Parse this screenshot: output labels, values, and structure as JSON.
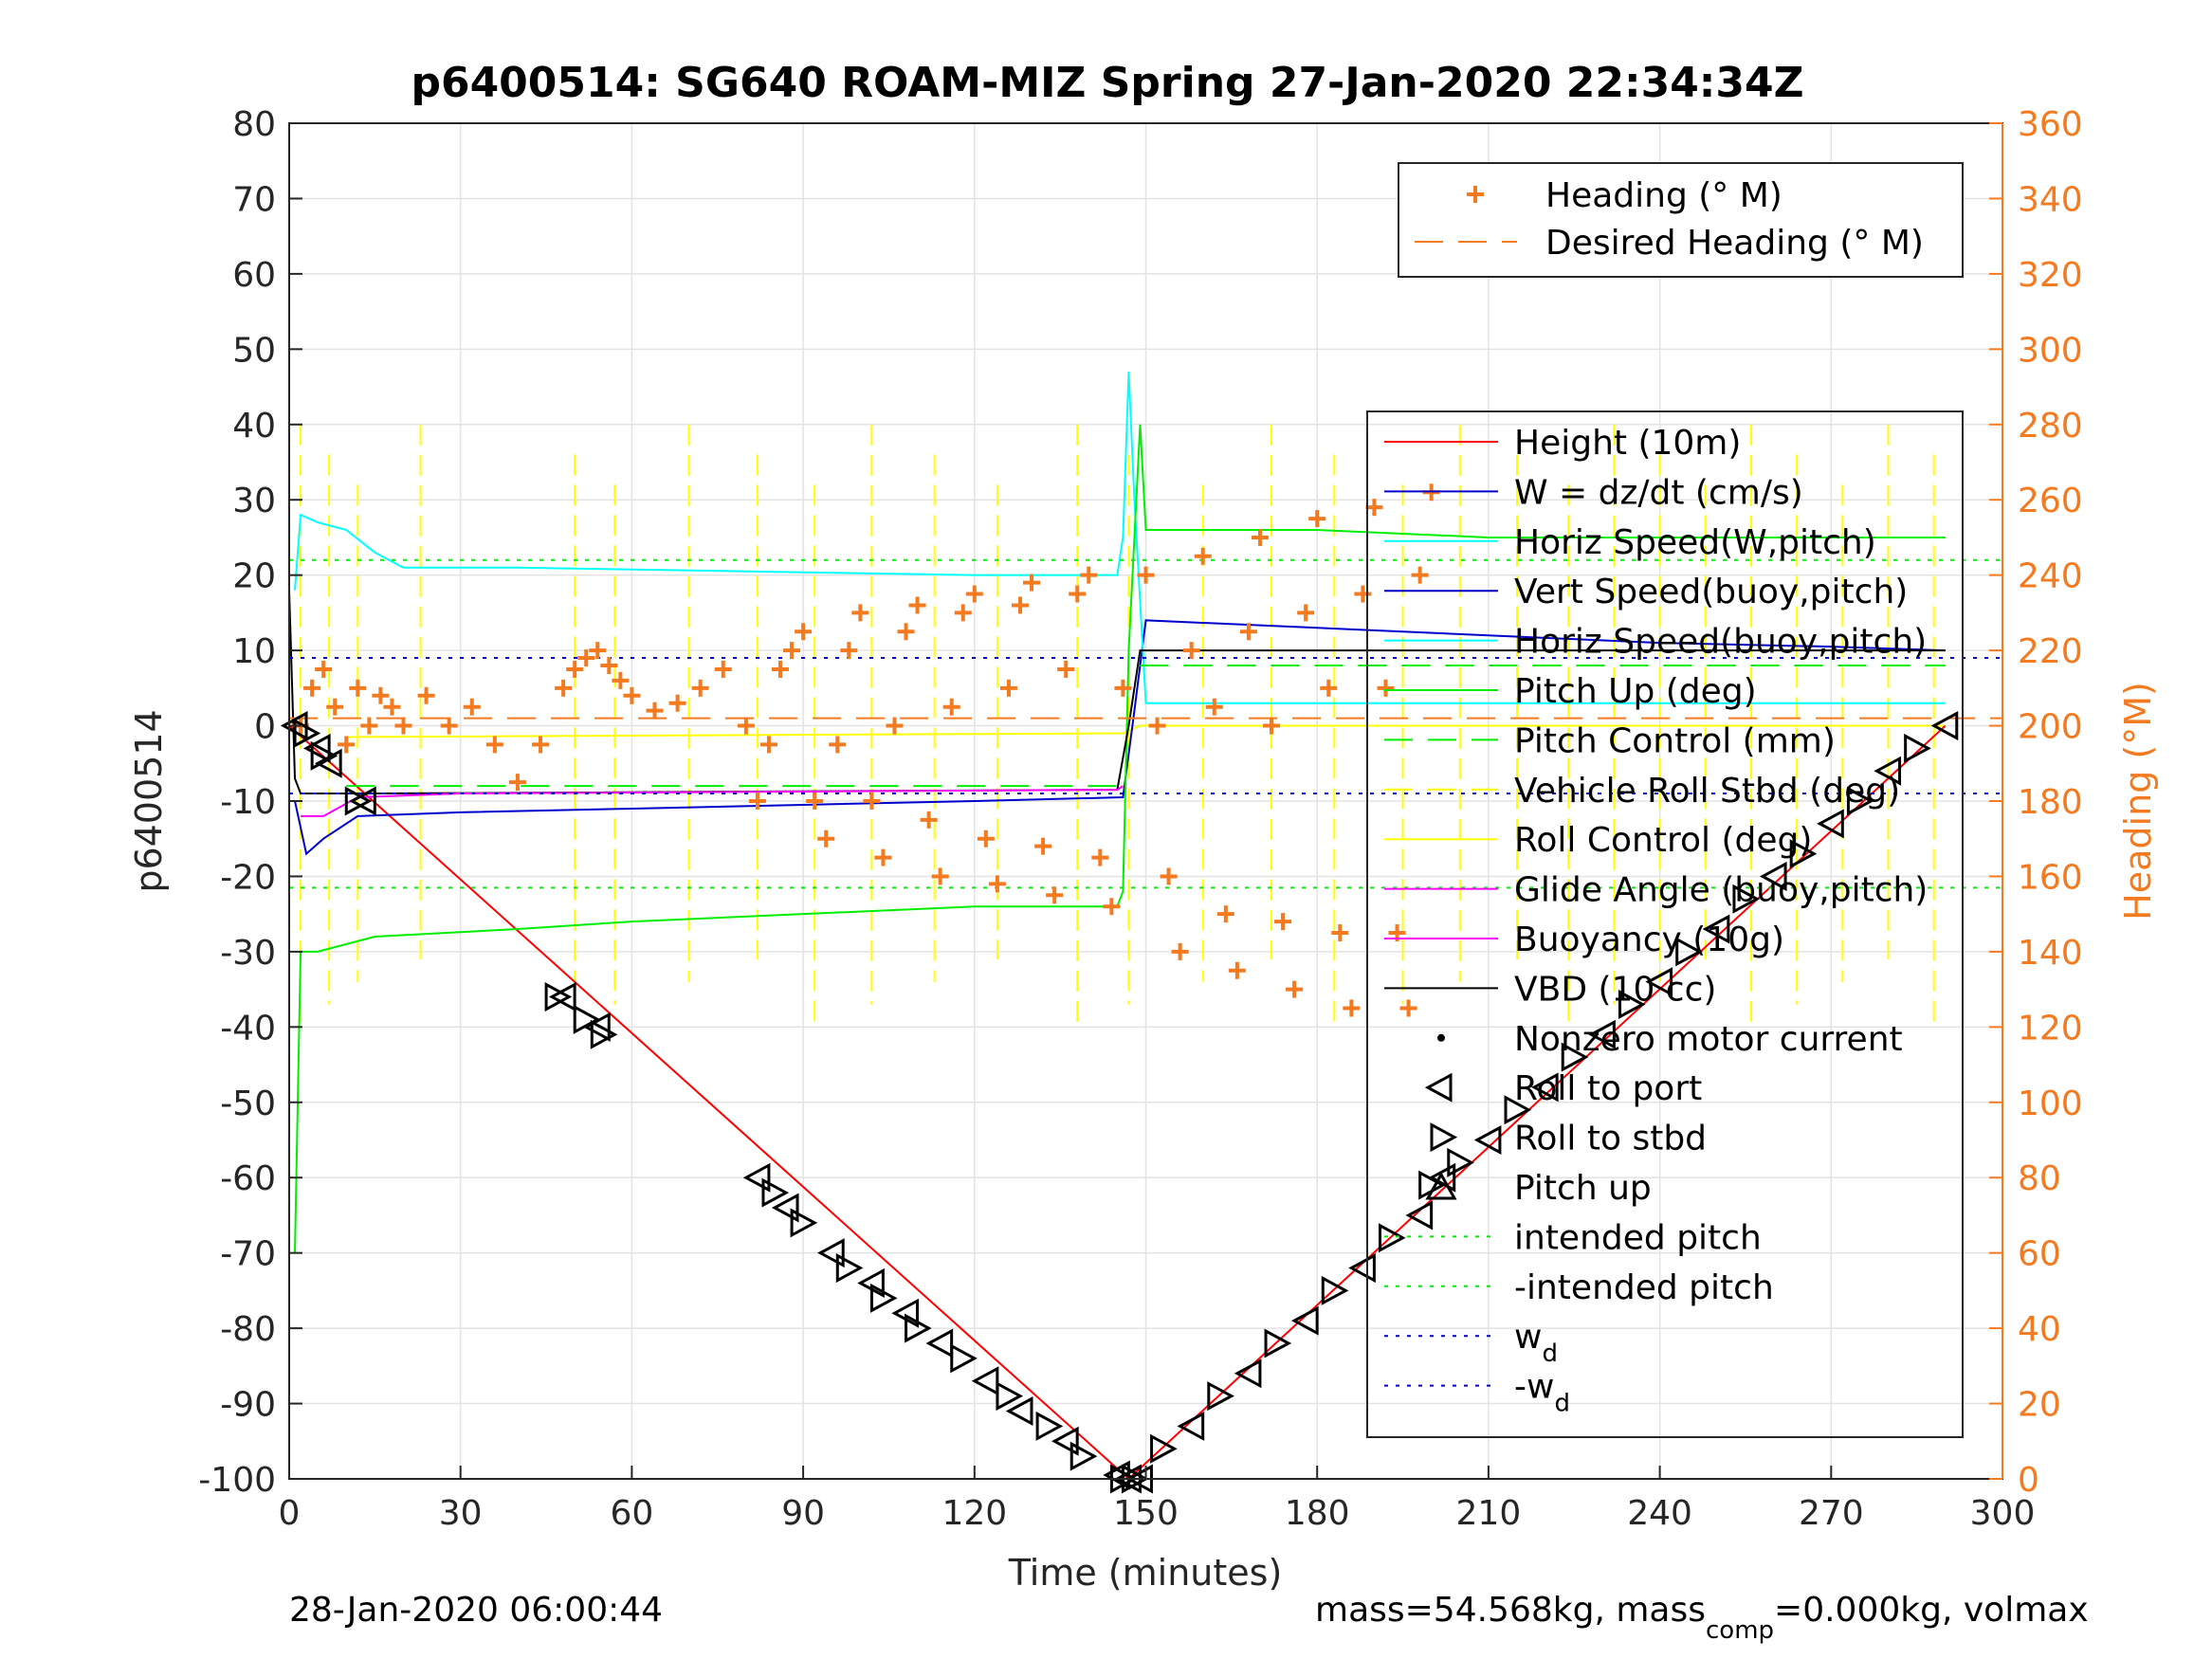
{
  "chart_data": {
    "type": "line",
    "title": "p6400514: SG640 ROAM-MIZ Spring 27-Jan-2020 22:34:34Z",
    "xlabel": "Time (minutes)",
    "ylabel_left": "p6400514",
    "ylabel_right": "Heading (°M)",
    "xlim": [
      0,
      300
    ],
    "ylim_left": [
      -100,
      80
    ],
    "ylim_right": [
      0,
      360
    ],
    "xticks": [
      "0",
      "30",
      "60",
      "90",
      "120",
      "150",
      "180",
      "210",
      "240",
      "270",
      "300"
    ],
    "yticks_left": [
      "-100",
      "-90",
      "-80",
      "-70",
      "-60",
      "-50",
      "-40",
      "-30",
      "-20",
      "-10",
      "0",
      "10",
      "20",
      "30",
      "40",
      "50",
      "60",
      "70",
      "80"
    ],
    "yticks_right": [
      "0",
      "20",
      "40",
      "60",
      "80",
      "100",
      "120",
      "140",
      "160",
      "180",
      "200",
      "220",
      "240",
      "260",
      "280",
      "300",
      "320",
      "340",
      "360"
    ],
    "grid": true,
    "colors": {
      "height": "#ff0000",
      "w": "#0000cc",
      "horiz_speed": "#00ffff",
      "pitch": "#00ee00",
      "roll": "#ffff00",
      "buoyancy": "#ff00ff",
      "vbd": "#000000",
      "heading": "#f47a20",
      "right_axis": "#f47a20"
    },
    "legend_heading": {
      "placement": "top-right",
      "entries": [
        "Heading (° M)",
        "Desired Heading (° M)"
      ]
    },
    "legend_main": {
      "placement": "right",
      "entries": [
        "Height (10m)",
        "W = dz/dt (cm/s)",
        "Horiz Speed(W,pitch)",
        "Vert Speed(buoy,pitch)",
        "Horiz Speed(buoy,pitch)",
        "Pitch Up (deg)",
        "Pitch Control (mm)",
        "Vehicle Roll Stbd (deg)",
        "Roll Control (deg)",
        "Glide Angle (buoy,pitch)",
        "Buoyancy (10g)",
        "VBD (10 cc)",
        "Nonzero motor current",
        "Roll to port",
        "Roll to stbd",
        "Pitch up",
        "intended pitch",
        "-intended pitch",
        "w",
        "-w"
      ],
      "subscript_entries": {
        "18": "d",
        "19": "d"
      }
    },
    "series": [
      {
        "name": "Height (10m)",
        "x": [
          0,
          147,
          290
        ],
        "y": [
          0,
          -100,
          0
        ]
      },
      {
        "name": "W = dz/dt (cm/s)",
        "x": [
          1,
          3,
          6,
          12,
          30,
          60,
          90,
          120,
          146,
          148,
          150,
          180,
          210,
          240,
          270,
          290
        ],
        "y": [
          -10,
          -17,
          -15,
          -12,
          -11.5,
          -11,
          -10.5,
          -10,
          -9.5,
          2,
          14,
          13,
          12,
          11,
          10.5,
          10
        ]
      },
      {
        "name": "Horiz Speed(W,pitch)",
        "x": [
          1,
          2,
          5,
          10,
          15,
          20,
          40,
          80,
          120,
          140,
          145,
          146,
          147,
          148,
          150,
          290
        ],
        "y": [
          18,
          28,
          27,
          26,
          23,
          21,
          21,
          20.5,
          20,
          20,
          20,
          25,
          47,
          30,
          3,
          3
        ]
      },
      {
        "name": "Pitch Up (deg)",
        "x": [
          1,
          2,
          5,
          15,
          40,
          60,
          90,
          120,
          145,
          146,
          147,
          149,
          150,
          180,
          210,
          240,
          290
        ],
        "y": [
          -70,
          -30,
          -30,
          -28,
          -27,
          -26,
          -25,
          -24,
          -24,
          -22,
          10,
          40,
          26,
          26,
          25,
          25,
          25
        ]
      },
      {
        "name": "VBD (10 cc)",
        "x": [
          0,
          1,
          2,
          14,
          145,
          147,
          149,
          290
        ],
        "y": [
          18,
          -7,
          -9,
          -9,
          -8.5,
          0,
          10,
          10
        ]
      },
      {
        "name": "Buoyancy (10g)",
        "x": [
          2,
          6,
          12,
          30,
          145,
          146
        ],
        "y": [
          -12,
          -12,
          -9.5,
          -9,
          -8.5,
          -8
        ]
      },
      {
        "name": "intended pitch",
        "y": [
          22
        ]
      },
      {
        "name": "-intended pitch",
        "y": [
          -21.5
        ]
      },
      {
        "name": "w",
        "y": [
          9
        ]
      },
      {
        "name": "-w",
        "y": [
          -9
        ]
      },
      {
        "name": "Desired Heading (° M)",
        "y_right": [
          202
        ]
      },
      {
        "name": "Pitch Control (mm)",
        "y_segments": [
          {
            "x": [
              10,
              146
            ],
            "y": [
              -8,
              -8
            ]
          },
          {
            "x": [
              149,
              290
            ],
            "y": [
              8,
              8
            ]
          }
        ]
      },
      {
        "name": "Heading (° M)",
        "x": [
          2,
          4,
          6,
          8,
          10,
          12,
          14,
          16,
          18,
          20,
          24,
          28,
          32,
          36,
          40,
          44,
          48,
          50,
          52,
          54,
          56,
          58,
          60,
          64,
          68,
          72,
          76,
          80,
          82,
          84,
          86,
          88,
          90,
          92,
          94,
          96,
          98,
          100,
          102,
          104,
          106,
          108,
          110,
          112,
          114,
          116,
          118,
          120,
          122,
          124,
          126,
          128,
          130,
          132,
          134,
          136,
          138,
          140,
          142,
          144,
          146,
          150,
          152,
          154,
          156,
          158,
          160,
          162,
          164,
          166,
          168,
          170,
          172,
          174,
          176,
          178,
          180,
          182,
          184,
          186,
          188,
          190,
          192,
          194,
          196,
          198,
          200
        ],
        "y_right": [
          200,
          210,
          215,
          205,
          195,
          210,
          200,
          208,
          205,
          200,
          208,
          200,
          205,
          195,
          185,
          195,
          210,
          215,
          218,
          220,
          216,
          212,
          208,
          204,
          206,
          210,
          215,
          200,
          180,
          195,
          215,
          220,
          225,
          180,
          170,
          195,
          220,
          230,
          180,
          165,
          200,
          225,
          232,
          175,
          160,
          205,
          230,
          235,
          170,
          158,
          210,
          232,
          238,
          168,
          155,
          215,
          235,
          240,
          165,
          152,
          210,
          240,
          200,
          160,
          140,
          220,
          245,
          205,
          150,
          135,
          225,
          250,
          200,
          148,
          130,
          230,
          255,
          210,
          145,
          125,
          235,
          258,
          210,
          145,
          125,
          240,
          262
        ]
      }
    ],
    "markers": {
      "roll_to_port_stbd": {
        "x": [
          1,
          3,
          5,
          6,
          7,
          12,
          13,
          47,
          48,
          52,
          54,
          55,
          82,
          85,
          87,
          90,
          95,
          98,
          102,
          104,
          108,
          110,
          114,
          118,
          122,
          126,
          128,
          133,
          136,
          139,
          145,
          146,
          147,
          148,
          149,
          153,
          158,
          163,
          168,
          173,
          178,
          183,
          188,
          193,
          198,
          200,
          202,
          205,
          210,
          215,
          220,
          225,
          230,
          235,
          240,
          245,
          250,
          255,
          260,
          265,
          270,
          275,
          280,
          285,
          290
        ],
        "y": [
          0,
          -1,
          -3,
          -4,
          -5,
          -10,
          -10,
          -36,
          -36,
          -39,
          -40,
          -41,
          -60,
          -62,
          -64,
          -66,
          -70,
          -72,
          -74,
          -76,
          -78,
          -80,
          -82,
          -84,
          -87,
          -89,
          -91,
          -93,
          -95,
          -97,
          -99.5,
          -100,
          -100,
          -100,
          -100,
          -96,
          -93,
          -89,
          -86,
          -82,
          -79,
          -75,
          -72,
          -68,
          -65,
          -61,
          -60,
          -58,
          -55,
          -51,
          -48,
          -44,
          -41,
          -37,
          -34,
          -30,
          -27,
          -23,
          -20,
          -17,
          -13,
          -10,
          -6,
          -3,
          0
        ]
      }
    }
  },
  "footer": {
    "left": "28-Jan-2020 06:00:44",
    "right_prefix": "mass=54.568kg, mass",
    "right_sub": "comp",
    "right_suffix": "=0.000kg, volmax"
  }
}
